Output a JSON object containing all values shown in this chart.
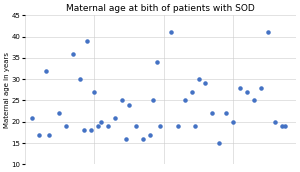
{
  "title": "Maternal age at bith of patients with SOD",
  "ylabel": "Maternal age in years",
  "ylim": [
    10,
    45
  ],
  "yticks": [
    10,
    15,
    20,
    25,
    30,
    35,
    40,
    45
  ],
  "dot_color": "#4472C4",
  "dot_size": 5,
  "x": [
    1,
    2,
    3,
    3.5,
    5,
    6,
    7,
    8,
    8.5,
    9,
    9.5,
    10,
    10.5,
    11,
    12,
    13,
    14,
    14.5,
    15,
    16,
    17,
    18,
    18.5,
    19,
    19.5,
    21,
    22,
    23,
    24,
    24.5,
    25,
    26,
    27,
    28,
    29,
    30,
    31,
    32,
    33,
    34,
    35,
    36,
    37,
    37.5
  ],
  "y": [
    21,
    17,
    32,
    17,
    22,
    19,
    36,
    30,
    18,
    39,
    18,
    27,
    19,
    20,
    19,
    21,
    25,
    16,
    24,
    19,
    16,
    17,
    25,
    34,
    19,
    41,
    19,
    25,
    27,
    19,
    30,
    29,
    22,
    15,
    22,
    20,
    28,
    27,
    25,
    28,
    41,
    20,
    19,
    19
  ]
}
